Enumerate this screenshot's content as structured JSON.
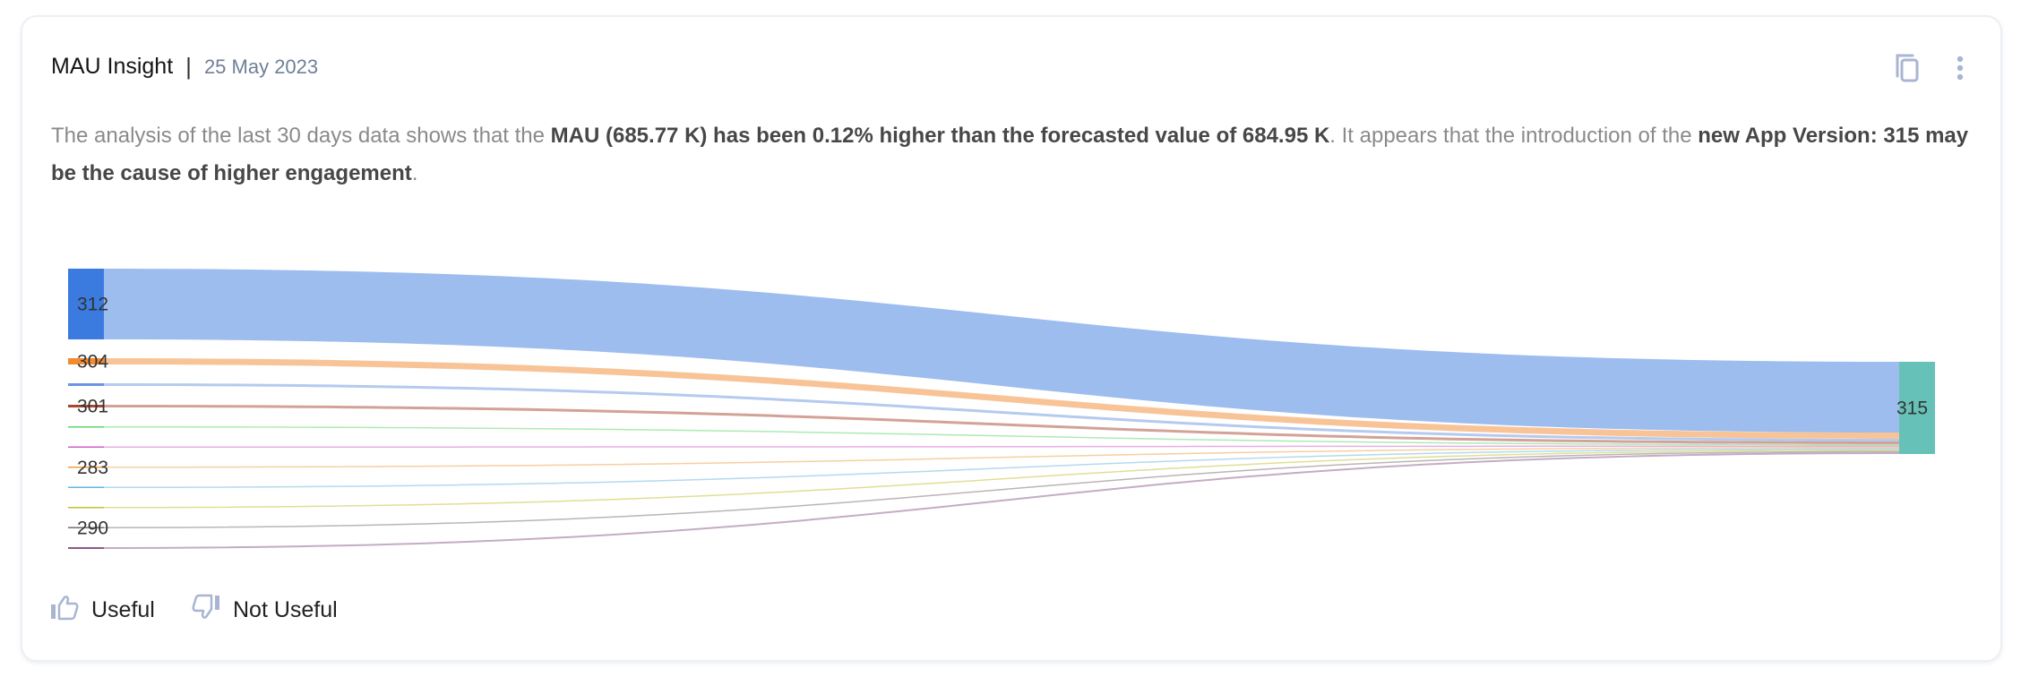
{
  "card": {
    "title": "MAU Insight",
    "separator": "|",
    "date": "25 May 2023",
    "icons": [
      "copy-icon",
      "more-vertical-icon"
    ],
    "summary": [
      {
        "text": "The analysis of the last 30 days data shows that the ",
        "bold": false
      },
      {
        "text": "MAU (685.77 K) has been 0.12% higher than the forecasted value of 684.95 K",
        "bold": true
      },
      {
        "text": ". It appears that the introduction of the ",
        "bold": false
      },
      {
        "text": "new App Version: 315 may be the cause of higher engagement",
        "bold": true
      },
      {
        "text": ".",
        "bold": false
      }
    ],
    "feedback": {
      "useful_label": "Useful",
      "not_useful_label": "Not Useful"
    }
  },
  "chart_data": {
    "type": "sankey",
    "target": {
      "label": "315",
      "color": "#66c2b8"
    },
    "sources": [
      {
        "label": "312",
        "value": 79,
        "color": "#3b7be0"
      },
      {
        "label": "304",
        "value": 7,
        "color": "#f28a30"
      },
      {
        "label": "",
        "value": 3,
        "color": "#6b95e0"
      },
      {
        "label": "301",
        "value": 3,
        "color": "#a84530"
      },
      {
        "label": "",
        "value": 1,
        "color": "#5cd66a"
      },
      {
        "label": "",
        "value": 1,
        "color": "#d060c8"
      },
      {
        "label": "283",
        "value": 1,
        "color": "#f0a040"
      },
      {
        "label": "",
        "value": 1,
        "color": "#6ab4e0"
      },
      {
        "label": "",
        "value": 1,
        "color": "#c0c030"
      },
      {
        "label": "290",
        "value": 1,
        "color": "#7a6a70"
      },
      {
        "label": "",
        "value": 2,
        "color": "#8a5a88"
      }
    ]
  }
}
